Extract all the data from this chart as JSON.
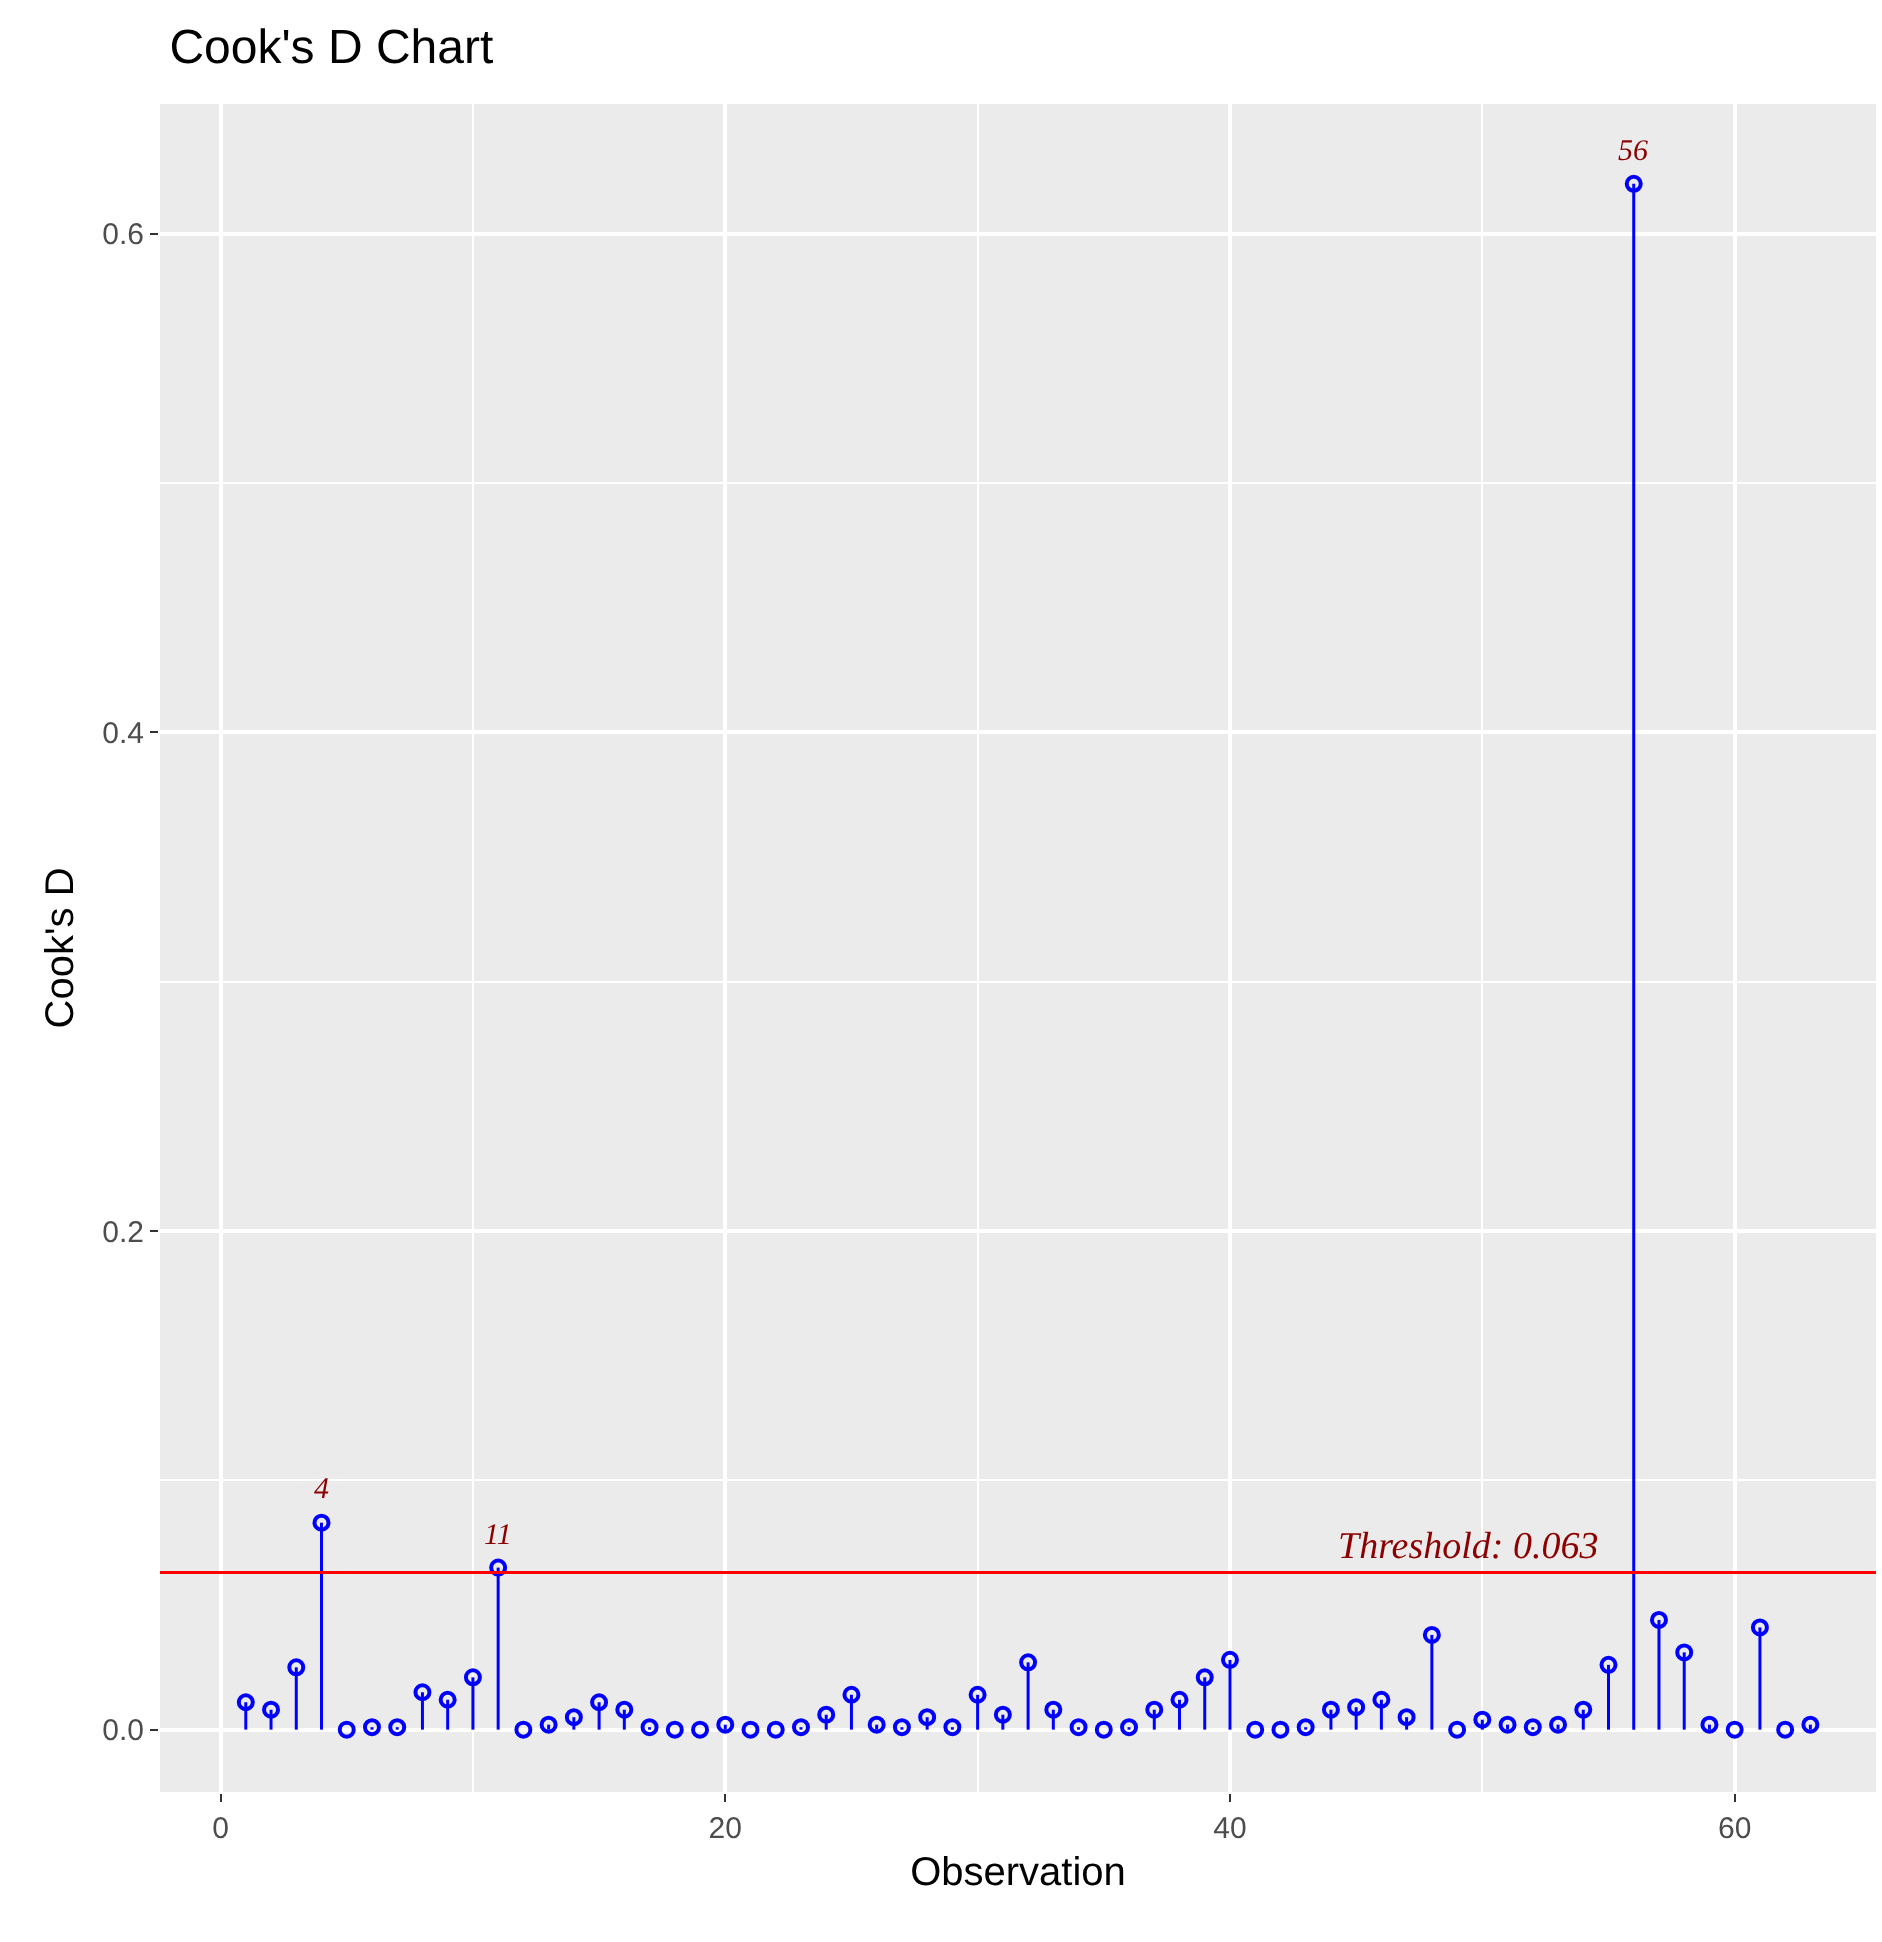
{
  "chart_data": {
    "type": "lollipop",
    "title": "Cook's D Chart",
    "xlabel": "Observation",
    "ylabel": "Cook's D",
    "x": [
      1,
      2,
      3,
      4,
      5,
      6,
      7,
      8,
      9,
      10,
      11,
      12,
      13,
      14,
      15,
      16,
      17,
      18,
      19,
      20,
      21,
      22,
      23,
      24,
      25,
      26,
      27,
      28,
      29,
      30,
      31,
      32,
      33,
      34,
      35,
      36,
      37,
      38,
      39,
      40,
      41,
      42,
      43,
      44,
      45,
      46,
      47,
      48,
      49,
      50,
      51,
      52,
      53,
      54,
      55,
      56,
      57,
      58,
      59,
      60,
      61,
      62,
      63
    ],
    "series": [
      {
        "color": "#0000ff",
        "values": [
          0.011,
          0.008,
          0.025,
          0.083,
          0,
          0.001,
          0.001,
          0.015,
          0.012,
          0.021,
          0.065,
          0,
          0.002,
          0.005,
          0.011,
          0.008,
          0.001,
          0,
          0,
          0.002,
          0,
          0,
          0.001,
          0.006,
          0.014,
          0.002,
          0.001,
          0.005,
          0.001,
          0.014,
          0.006,
          0.027,
          0.008,
          0.001,
          0,
          0.001,
          0.008,
          0.012,
          0.021,
          0.028,
          0,
          0,
          0.001,
          0.008,
          0.009,
          0.012,
          0.005,
          0.038,
          0,
          0.004,
          0.002,
          0.001,
          0.002,
          0.008,
          0.026,
          0.62,
          0.044,
          0.031,
          0.002,
          0,
          0.041,
          0,
          0.002
        ]
      }
    ],
    "xlim": [
      -2.4,
      65.6
    ],
    "ylim": [
      -0.025,
      0.652
    ],
    "xticks": [
      0,
      20,
      40,
      60
    ],
    "yticks": [
      {
        "value": 0,
        "label": "0.0"
      },
      {
        "value": 0.2,
        "label": "0.2"
      },
      {
        "value": 0.4,
        "label": "0.4"
      },
      {
        "value": 0.6,
        "label": "0.6"
      }
    ],
    "ref_lines": [
      {
        "axis": "y",
        "value": 0.063,
        "label": "Threshold: 0.063",
        "color": "#ff0000"
      }
    ],
    "annotations": [
      {
        "text": "4",
        "x": 4,
        "y": 0.083
      },
      {
        "text": "11",
        "x": 11,
        "y": 0.065
      },
      {
        "text": "56",
        "x": 56,
        "y": 0.62
      }
    ],
    "grid": true,
    "marker": "circle"
  }
}
